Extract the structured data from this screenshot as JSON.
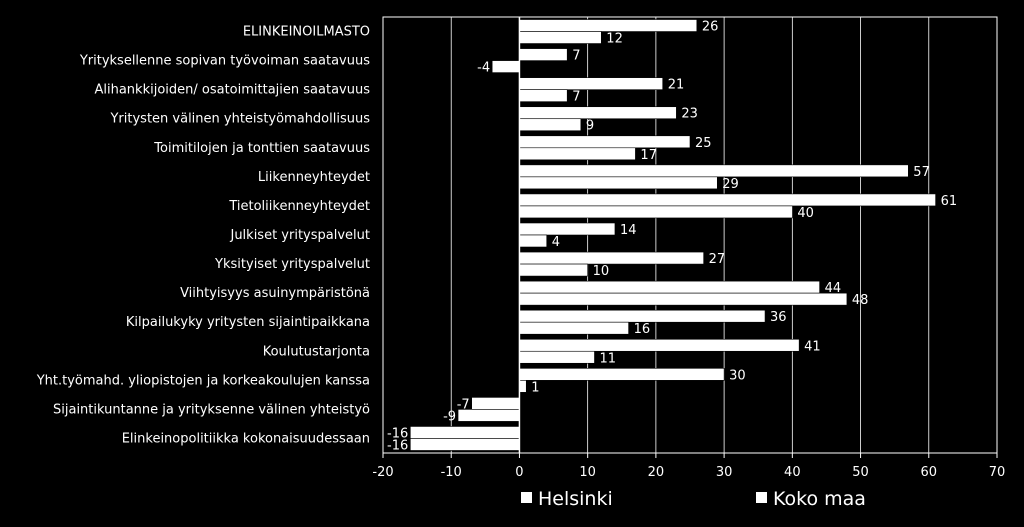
{
  "chart_data": {
    "type": "bar",
    "orientation": "horizontal",
    "categories": [
      "ELINKEINOILMASTO",
      "Yrityksellenne sopivan työvoiman saatavuus",
      "Alihankkijoiden/ osatoimittajien saatavuus",
      "Yritysten välinen yhteistyömahdollisuus",
      "Toimitilojen ja tonttien saatavuus",
      "Liikenneyhteydet",
      "Tietoliikenneyhteydet",
      "Julkiset yrityspalvelut",
      "Yksityiset yrityspalvelut",
      "Viihtyisyys asuinympäristönä",
      "Kilpailukyky yritysten sijaintipaikkana",
      "Koulutustarjonta",
      "Yht.työmahd. yliopistojen ja korkeakoulujen kanssa",
      "Sijaintikuntanne ja yrityksenne välinen yhteistyö",
      "Elinkeinopolitiikka kokonaisuudessaan"
    ],
    "series": [
      {
        "name": "Helsinki",
        "values": [
          26,
          7,
          21,
          23,
          25,
          57,
          61,
          14,
          27,
          44,
          36,
          41,
          30,
          -7,
          -16
        ]
      },
      {
        "name": "Koko maa",
        "values": [
          12,
          -4,
          7,
          9,
          17,
          29,
          40,
          4,
          10,
          48,
          16,
          11,
          1,
          -9,
          -16
        ]
      }
    ],
    "xlim": [
      -20,
      70
    ],
    "xticks": [
      "-20",
      "-10",
      "0",
      "10",
      "20",
      "30",
      "40",
      "50",
      "60",
      "70"
    ],
    "grid": true,
    "legend": "bottom",
    "bar_fill": "#ffffff",
    "background": "#000000",
    "text_color": "#ffffff",
    "grid_color": "#ffffff"
  }
}
